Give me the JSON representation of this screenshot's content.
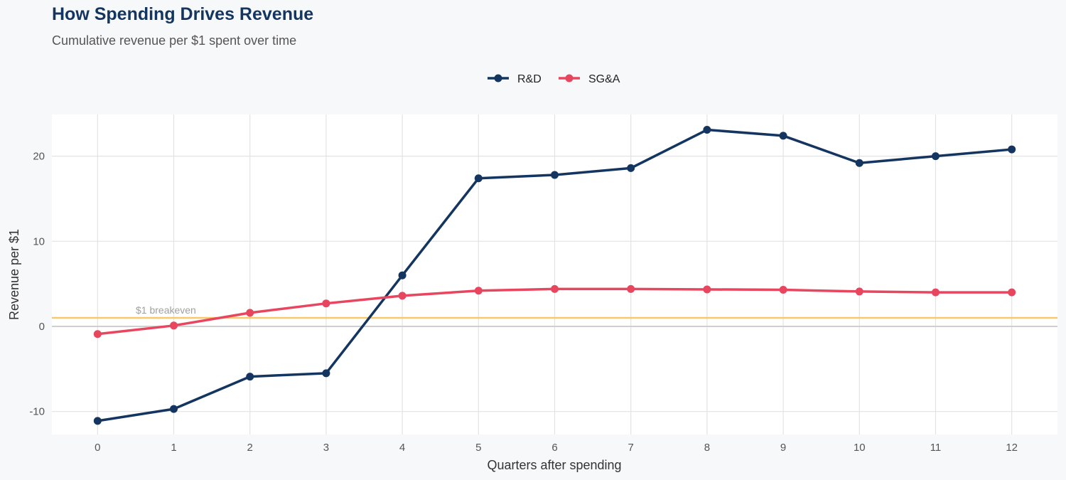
{
  "title": "How Spending Drives Revenue",
  "subtitle": "Cumulative revenue per $1 spent over time",
  "chart_data": {
    "type": "line",
    "title": "How Spending Drives Revenue",
    "subtitle": "Cumulative revenue per $1 spent over time",
    "xlabel": "Quarters after spending",
    "ylabel": "Revenue per $1",
    "x": [
      0,
      1,
      2,
      3,
      4,
      5,
      6,
      7,
      8,
      9,
      10,
      11,
      12
    ],
    "xticks": [
      "0",
      "1",
      "2",
      "3",
      "4",
      "5",
      "6",
      "7",
      "8",
      "9",
      "10",
      "11",
      "12"
    ],
    "yticks": [
      -10,
      0,
      10,
      20
    ],
    "ytick_labels": [
      "-10",
      "0",
      "10",
      "20"
    ],
    "xlim": [
      -0.6,
      12.6
    ],
    "ylim": [
      -12.7,
      24.9
    ],
    "grid": true,
    "legend_position": "top",
    "series": [
      {
        "name": "R&D",
        "color": "#13355f",
        "values": [
          -11.1,
          -9.7,
          -5.9,
          -5.5,
          6.0,
          17.4,
          17.8,
          18.6,
          23.1,
          22.4,
          19.2,
          20.0,
          20.8
        ]
      },
      {
        "name": "SG&A",
        "color": "#e8465f",
        "values": [
          -0.9,
          0.1,
          1.6,
          2.7,
          3.6,
          4.2,
          4.4,
          4.4,
          4.35,
          4.3,
          4.1,
          4.0,
          4.0
        ]
      }
    ],
    "reference_line": {
      "y": 1,
      "label": "$1 breakeven",
      "color": "#f7c96a"
    }
  }
}
